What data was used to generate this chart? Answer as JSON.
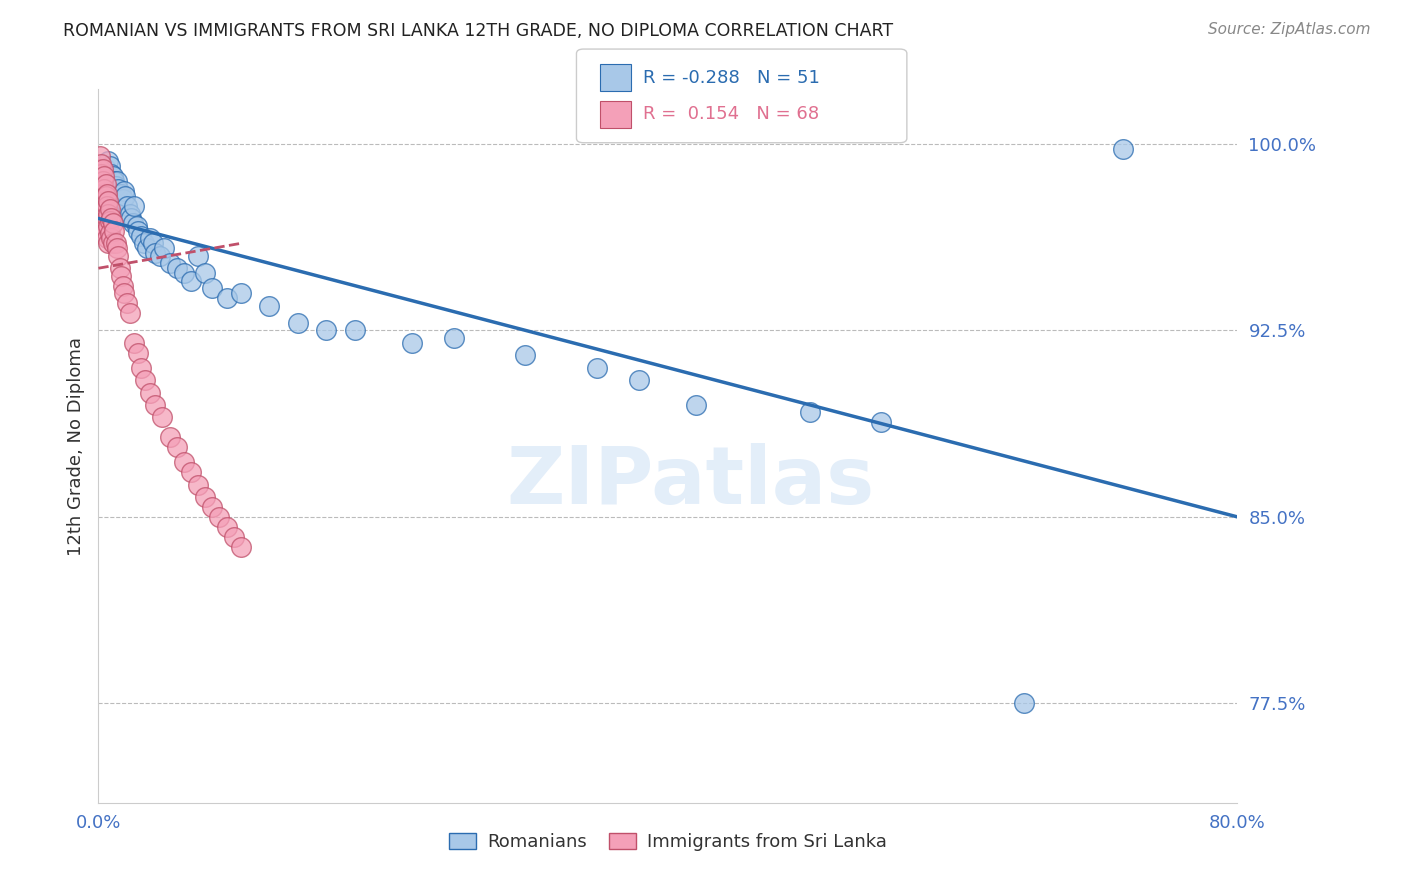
{
  "title": "ROMANIAN VS IMMIGRANTS FROM SRI LANKA 12TH GRADE, NO DIPLOMA CORRELATION CHART",
  "source": "Source: ZipAtlas.com",
  "ylabel": "12th Grade, No Diploma",
  "legend_label1": "Romanians",
  "legend_label2": "Immigrants from Sri Lanka",
  "r1": -0.288,
  "n1": 51,
  "r2": 0.154,
  "n2": 68,
  "color1": "#a8c8e8",
  "color2": "#f4a0b8",
  "trendline1_color": "#2b6cb0",
  "trendline2_color": "#c0506a",
  "xmin": 0.0,
  "xmax": 0.8,
  "ymin": 0.735,
  "ymax": 1.022,
  "yticks": [
    0.775,
    0.85,
    0.925,
    1.0
  ],
  "ytick_labels": [
    "77.5%",
    "85.0%",
    "92.5%",
    "100.0%"
  ],
  "xticks": [
    0.0,
    0.1,
    0.2,
    0.3,
    0.4,
    0.5,
    0.6,
    0.7,
    0.8
  ],
  "xtick_labels": [
    "0.0%",
    "",
    "",
    "",
    "",
    "",
    "",
    "",
    "80.0%"
  ],
  "blue_x": [
    0.005,
    0.007,
    0.008,
    0.009,
    0.01,
    0.011,
    0.012,
    0.013,
    0.014,
    0.016,
    0.017,
    0.018,
    0.019,
    0.02,
    0.022,
    0.023,
    0.024,
    0.025,
    0.027,
    0.028,
    0.03,
    0.032,
    0.034,
    0.036,
    0.038,
    0.04,
    0.043,
    0.046,
    0.05,
    0.055,
    0.06,
    0.065,
    0.07,
    0.075,
    0.08,
    0.09,
    0.1,
    0.12,
    0.14,
    0.16,
    0.18,
    0.22,
    0.25,
    0.3,
    0.35,
    0.38,
    0.42,
    0.5,
    0.55,
    0.65,
    0.72
  ],
  "blue_y": [
    0.99,
    0.993,
    0.991,
    0.988,
    0.987,
    0.985,
    0.983,
    0.985,
    0.982,
    0.98,
    0.978,
    0.981,
    0.979,
    0.975,
    0.972,
    0.97,
    0.968,
    0.975,
    0.967,
    0.965,
    0.963,
    0.96,
    0.958,
    0.962,
    0.96,
    0.956,
    0.955,
    0.958,
    0.952,
    0.95,
    0.948,
    0.945,
    0.955,
    0.948,
    0.942,
    0.938,
    0.94,
    0.935,
    0.928,
    0.925,
    0.925,
    0.92,
    0.922,
    0.915,
    0.91,
    0.905,
    0.895,
    0.892,
    0.888,
    0.775,
    0.998
  ],
  "pink_x": [
    0.001,
    0.001,
    0.001,
    0.001,
    0.001,
    0.002,
    0.002,
    0.002,
    0.002,
    0.002,
    0.002,
    0.003,
    0.003,
    0.003,
    0.003,
    0.003,
    0.004,
    0.004,
    0.004,
    0.004,
    0.004,
    0.005,
    0.005,
    0.005,
    0.005,
    0.006,
    0.006,
    0.006,
    0.006,
    0.007,
    0.007,
    0.007,
    0.007,
    0.008,
    0.008,
    0.008,
    0.009,
    0.009,
    0.01,
    0.01,
    0.011,
    0.012,
    0.013,
    0.014,
    0.015,
    0.016,
    0.017,
    0.018,
    0.02,
    0.022,
    0.025,
    0.028,
    0.03,
    0.033,
    0.036,
    0.04,
    0.045,
    0.05,
    0.055,
    0.06,
    0.065,
    0.07,
    0.075,
    0.08,
    0.085,
    0.09,
    0.095,
    0.1
  ],
  "pink_y": [
    0.995,
    0.99,
    0.985,
    0.98,
    0.975,
    0.992,
    0.988,
    0.983,
    0.978,
    0.973,
    0.968,
    0.99,
    0.985,
    0.98,
    0.975,
    0.97,
    0.987,
    0.982,
    0.977,
    0.972,
    0.967,
    0.984,
    0.979,
    0.974,
    0.965,
    0.98,
    0.975,
    0.97,
    0.962,
    0.977,
    0.972,
    0.967,
    0.96,
    0.974,
    0.969,
    0.964,
    0.97,
    0.962,
    0.968,
    0.96,
    0.965,
    0.96,
    0.958,
    0.955,
    0.95,
    0.947,
    0.943,
    0.94,
    0.936,
    0.932,
    0.92,
    0.916,
    0.91,
    0.905,
    0.9,
    0.895,
    0.89,
    0.882,
    0.878,
    0.872,
    0.868,
    0.863,
    0.858,
    0.854,
    0.85,
    0.846,
    0.842,
    0.838
  ],
  "trendline_blue_x0": 0.0,
  "trendline_blue_x1": 0.8,
  "trendline_blue_y0": 0.97,
  "trendline_blue_y1": 0.85,
  "trendline_pink_x0": 0.0,
  "trendline_pink_x1": 0.1,
  "trendline_pink_y0": 0.95,
  "trendline_pink_y1": 0.96
}
